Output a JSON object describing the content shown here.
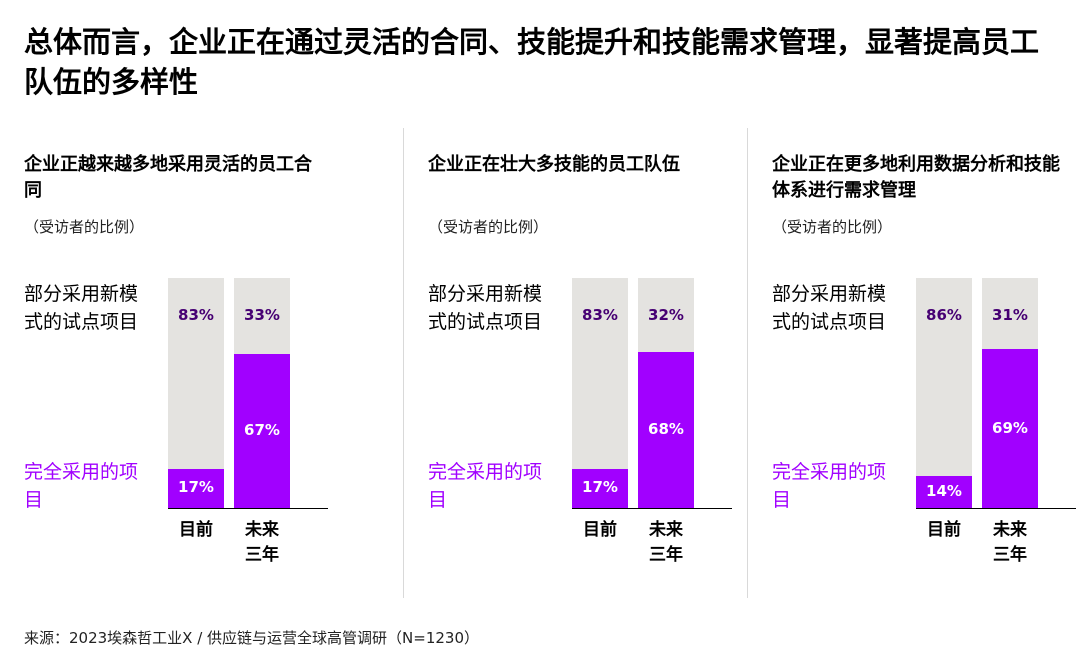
{
  "title": "总体而言，企业正在通过灵活的合同、技能提升和技能需求管理，显著提高员工队伍的多样性",
  "footer": "来源：2023埃森哲工业X / 供应链与运营全球高管调研（N=1230）",
  "colors": {
    "partial": "#e4e3e0",
    "full": "#a100ff",
    "partial_text": "#460073",
    "full_text": "#ffffff"
  },
  "chart_data": [
    {
      "type": "bar",
      "stacked": true,
      "title": "企业正越来越多地采用灵活的员工合同",
      "subtitle": "（受访者的比例）",
      "categories": [
        "目前",
        "未来三年"
      ],
      "series": [
        {
          "name": "完全采用的项目",
          "values": [
            17,
            67
          ],
          "labels": [
            "17%",
            "67%"
          ]
        },
        {
          "name": "部分采用新模式的试点项目",
          "values": [
            83,
            33
          ],
          "labels": [
            "83%",
            "33%"
          ]
        }
      ],
      "ylim": [
        0,
        100
      ],
      "grid": false,
      "legend": "left"
    },
    {
      "type": "bar",
      "stacked": true,
      "title": "企业正在壮大多技能的员工队伍",
      "subtitle": "（受访者的比例）",
      "categories": [
        "目前",
        "未来三年"
      ],
      "series": [
        {
          "name": "完全采用的项目",
          "values": [
            17,
            68
          ],
          "labels": [
            "17%",
            "68%"
          ]
        },
        {
          "name": "部分采用新模式的试点项目",
          "values": [
            83,
            32
          ],
          "labels": [
            "83%",
            "32%"
          ]
        }
      ],
      "ylim": [
        0,
        100
      ],
      "grid": false,
      "legend": "left"
    },
    {
      "type": "bar",
      "stacked": true,
      "title": "企业正在更多地利用数据分析和技能体系进行需求管理",
      "subtitle": "（受访者的比例）",
      "categories": [
        "目前",
        "未来三年"
      ],
      "series": [
        {
          "name": "完全采用的项目",
          "values": [
            14,
            69
          ],
          "labels": [
            "14%",
            "69%"
          ]
        },
        {
          "name": "部分采用新模式的试点项目",
          "values": [
            86,
            31
          ],
          "labels": [
            "86%",
            "31%"
          ]
        }
      ],
      "ylim": [
        0,
        100
      ],
      "grid": false,
      "legend": "left"
    }
  ],
  "category_labels": [
    [
      "目前",
      ""
    ],
    [
      "未来",
      "三年"
    ]
  ]
}
